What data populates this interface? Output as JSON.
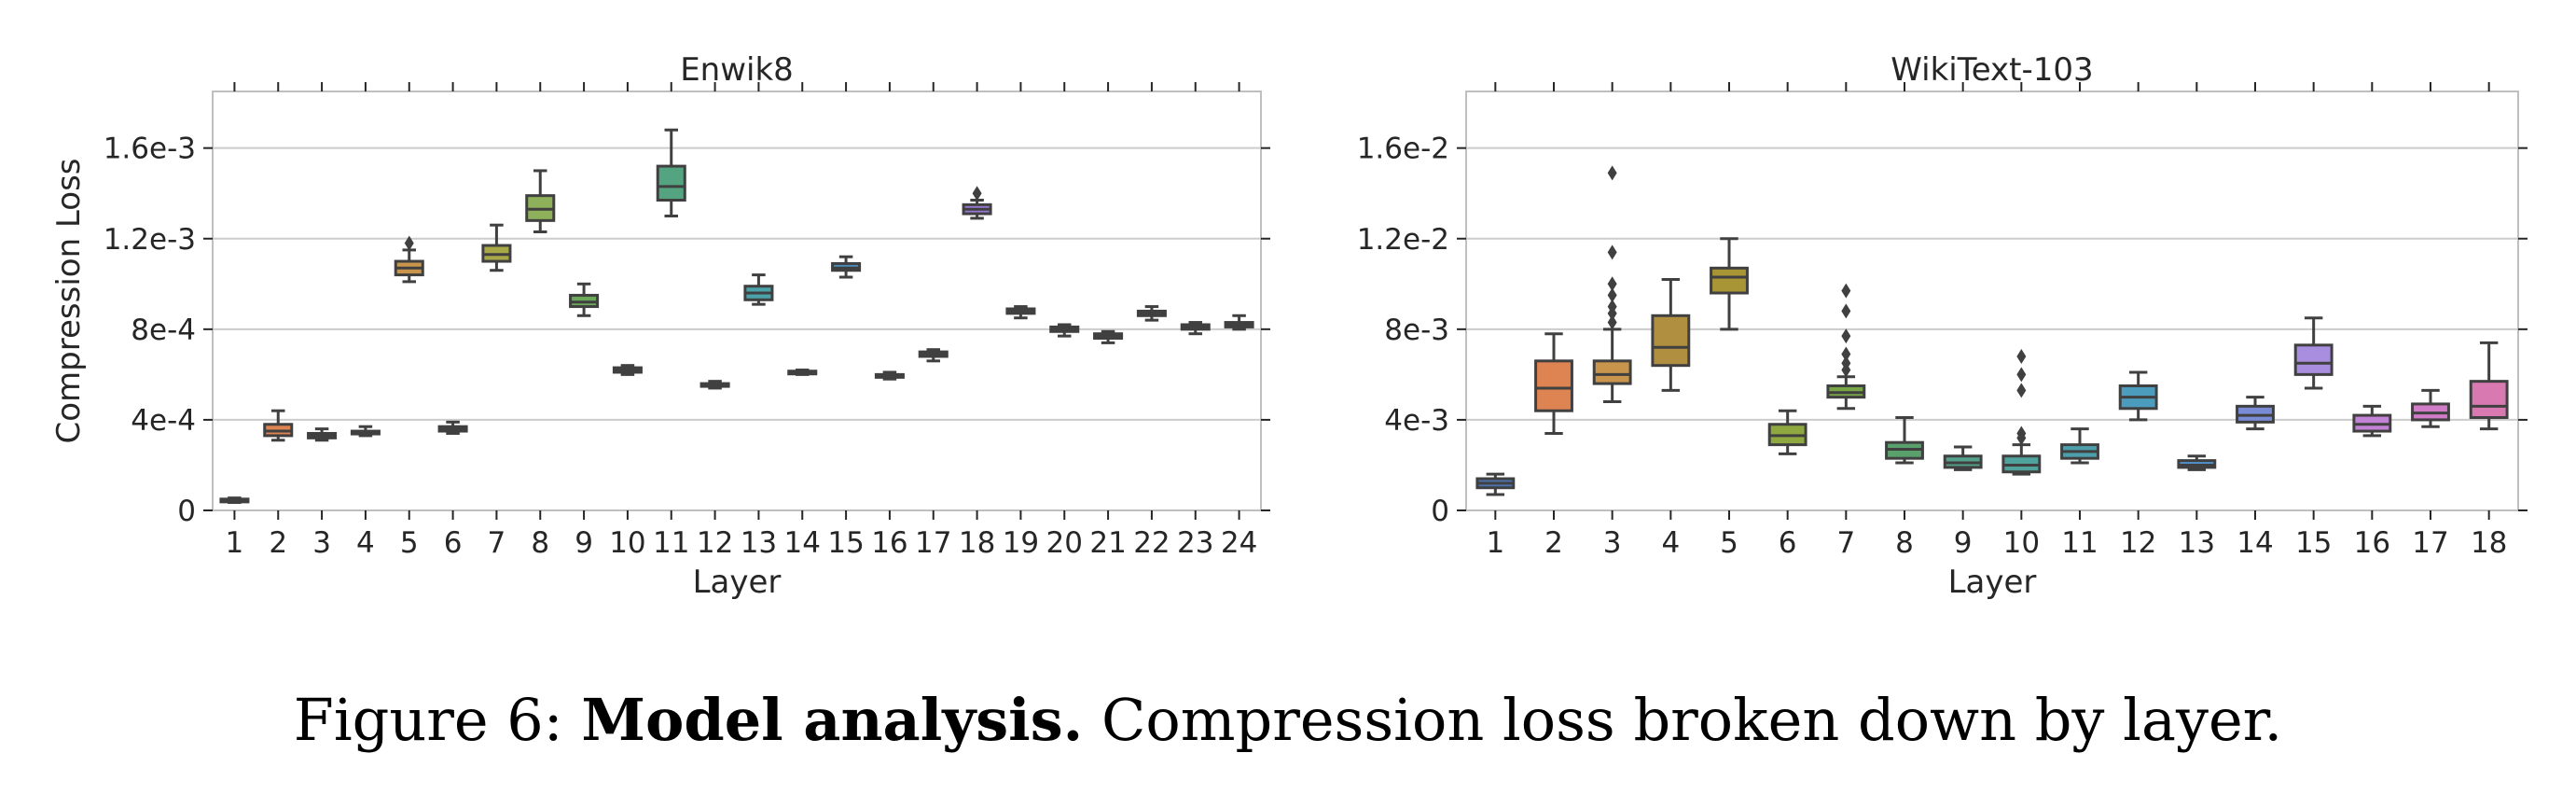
{
  "caption": {
    "prefix": "Figure 6:",
    "bold": "Model analysis.",
    "text": "Compression loss broken down by layer."
  },
  "chart_data": [
    {
      "type": "box",
      "title": "Enwik8",
      "xlabel": "Layer",
      "ylabel": "Compression Loss",
      "ylim": [
        0,
        0.00185
      ],
      "yticks": [
        0,
        0.0004,
        0.0008,
        0.0012,
        0.0016
      ],
      "ytick_labels": [
        "0",
        "4e-4",
        "8e-4",
        "1.2e-3",
        "1.6e-3"
      ],
      "grid": "horizontal",
      "categories": [
        "1",
        "2",
        "3",
        "4",
        "5",
        "6",
        "7",
        "8",
        "9",
        "10",
        "11",
        "12",
        "13",
        "14",
        "15",
        "16",
        "17",
        "18",
        "19",
        "20",
        "21",
        "22",
        "23",
        "24"
      ],
      "boxes": [
        {
          "whislo": 3.5e-05,
          "q1": 4e-05,
          "med": 4.5e-05,
          "q3": 5e-05,
          "whishi": 5.5e-05,
          "fliers": [],
          "color": "#4c72b0"
        },
        {
          "whislo": 0.00031,
          "q1": 0.00033,
          "med": 0.00035,
          "q3": 0.00038,
          "whishi": 0.00044,
          "fliers": [],
          "color": "#dd8452"
        },
        {
          "whislo": 0.00031,
          "q1": 0.00032,
          "med": 0.00033,
          "q3": 0.00034,
          "whishi": 0.00036,
          "fliers": [],
          "color": "#c44e52"
        },
        {
          "whislo": 0.00033,
          "q1": 0.00034,
          "med": 0.000345,
          "q3": 0.00035,
          "whishi": 0.00037,
          "fliers": [],
          "color": "#a88330"
        },
        {
          "whislo": 0.00101,
          "q1": 0.00104,
          "med": 0.00107,
          "q3": 0.0011,
          "whishi": 0.00115,
          "fliers": [
            0.00118
          ],
          "color": "#c9954c"
        },
        {
          "whislo": 0.00034,
          "q1": 0.00035,
          "med": 0.00036,
          "q3": 0.00037,
          "whishi": 0.00039,
          "fliers": [],
          "color": "#8d9a3a"
        },
        {
          "whislo": 0.00106,
          "q1": 0.0011,
          "med": 0.00113,
          "q3": 0.00117,
          "whishi": 0.00126,
          "fliers": [],
          "color": "#a8a848"
        },
        {
          "whislo": 0.00123,
          "q1": 0.00128,
          "med": 0.00133,
          "q3": 0.00139,
          "whishi": 0.0015,
          "fliers": [],
          "color": "#8fb05a"
        },
        {
          "whislo": 0.00086,
          "q1": 0.0009,
          "med": 0.00092,
          "q3": 0.00095,
          "whishi": 0.001,
          "fliers": [],
          "color": "#6ba85a"
        },
        {
          "whislo": 0.0006,
          "q1": 0.00061,
          "med": 0.00062,
          "q3": 0.00063,
          "whishi": 0.00064,
          "fliers": [],
          "color": "#5a9e6f"
        },
        {
          "whislo": 0.0013,
          "q1": 0.00137,
          "med": 0.00143,
          "q3": 0.00152,
          "whishi": 0.00168,
          "fliers": [],
          "color": "#55a481"
        },
        {
          "whislo": 0.00054,
          "q1": 0.00055,
          "med": 0.000555,
          "q3": 0.00056,
          "whishi": 0.00057,
          "fliers": [],
          "color": "#4fa895"
        },
        {
          "whislo": 0.00091,
          "q1": 0.00093,
          "med": 0.00096,
          "q3": 0.00099,
          "whishi": 0.00104,
          "fliers": [],
          "color": "#4aa3a8"
        },
        {
          "whislo": 0.0006,
          "q1": 0.000605,
          "med": 0.00061,
          "q3": 0.000615,
          "whishi": 0.00062,
          "fliers": [],
          "color": "#4899b2"
        },
        {
          "whislo": 0.00103,
          "q1": 0.00106,
          "med": 0.00107,
          "q3": 0.00109,
          "whishi": 0.00112,
          "fliers": [],
          "color": "#4a8ebd"
        },
        {
          "whislo": 0.00058,
          "q1": 0.00059,
          "med": 0.000595,
          "q3": 0.0006,
          "whishi": 0.00061,
          "fliers": [],
          "color": "#5b86c8"
        },
        {
          "whislo": 0.00066,
          "q1": 0.00068,
          "med": 0.00069,
          "q3": 0.0007,
          "whishi": 0.00071,
          "fliers": [],
          "color": "#7a7fcf"
        },
        {
          "whislo": 0.00129,
          "q1": 0.00131,
          "med": 0.00133,
          "q3": 0.00135,
          "whishi": 0.00137,
          "fliers": [
            0.0014
          ],
          "color": "#9778d0"
        },
        {
          "whislo": 0.00085,
          "q1": 0.00087,
          "med": 0.00088,
          "q3": 0.00089,
          "whishi": 0.0009,
          "fliers": [],
          "color": "#b06fcb"
        },
        {
          "whislo": 0.00077,
          "q1": 0.00079,
          "med": 0.0008,
          "q3": 0.00081,
          "whishi": 0.00082,
          "fliers": [],
          "color": "#c26cbf"
        },
        {
          "whislo": 0.00074,
          "q1": 0.00076,
          "med": 0.00077,
          "q3": 0.00078,
          "whishi": 0.00079,
          "fliers": [],
          "color": "#cb6aaf"
        },
        {
          "whislo": 0.00084,
          "q1": 0.00086,
          "med": 0.00087,
          "q3": 0.00088,
          "whishi": 0.0009,
          "fliers": [],
          "color": "#d46aa0"
        },
        {
          "whislo": 0.00078,
          "q1": 0.0008,
          "med": 0.00081,
          "q3": 0.00082,
          "whishi": 0.00083,
          "fliers": [],
          "color": "#d86b8f"
        },
        {
          "whislo": 0.0008,
          "q1": 0.00081,
          "med": 0.00082,
          "q3": 0.00083,
          "whishi": 0.00086,
          "fliers": [],
          "color": "#dc6e7e"
        }
      ]
    },
    {
      "type": "box",
      "title": "WikiText-103",
      "xlabel": "Layer",
      "ylabel": "",
      "ylim": [
        0,
        0.0185
      ],
      "yticks": [
        0,
        0.004,
        0.008,
        0.012,
        0.016
      ],
      "ytick_labels": [
        "0",
        "4e-3",
        "8e-3",
        "1.2e-2",
        "1.6e-2"
      ],
      "grid": "horizontal",
      "categories": [
        "1",
        "2",
        "3",
        "4",
        "5",
        "6",
        "7",
        "8",
        "9",
        "10",
        "11",
        "12",
        "13",
        "14",
        "15",
        "16",
        "17",
        "18"
      ],
      "boxes": [
        {
          "whislo": 0.0007,
          "q1": 0.001,
          "med": 0.0012,
          "q3": 0.0014,
          "whishi": 0.0016,
          "fliers": [],
          "color": "#4c72b0"
        },
        {
          "whislo": 0.0034,
          "q1": 0.0044,
          "med": 0.0054,
          "q3": 0.0066,
          "whishi": 0.0078,
          "fliers": [],
          "color": "#dd8452"
        },
        {
          "whislo": 0.0048,
          "q1": 0.0056,
          "med": 0.006,
          "q3": 0.0066,
          "whishi": 0.008,
          "fliers": [
            0.0083,
            0.0087,
            0.009,
            0.0095,
            0.01,
            0.0114,
            0.0149
          ],
          "color": "#c9954c"
        },
        {
          "whislo": 0.0053,
          "q1": 0.0064,
          "med": 0.0072,
          "q3": 0.0086,
          "whishi": 0.0102,
          "fliers": [],
          "color": "#b08f40"
        },
        {
          "whislo": 0.008,
          "q1": 0.0096,
          "med": 0.0103,
          "q3": 0.0107,
          "whishi": 0.012,
          "fliers": [],
          "color": "#a89536"
        },
        {
          "whislo": 0.0025,
          "q1": 0.0029,
          "med": 0.0033,
          "q3": 0.0038,
          "whishi": 0.0044,
          "fliers": [],
          "color": "#8fa83f"
        },
        {
          "whislo": 0.0045,
          "q1": 0.005,
          "med": 0.0052,
          "q3": 0.0055,
          "whishi": 0.0059,
          "fliers": [
            0.0062,
            0.0065,
            0.0069,
            0.0077,
            0.0088,
            0.0097
          ],
          "color": "#78a545"
        },
        {
          "whislo": 0.0021,
          "q1": 0.0023,
          "med": 0.0027,
          "q3": 0.003,
          "whishi": 0.0041,
          "fliers": [],
          "color": "#5aa06c"
        },
        {
          "whislo": 0.0018,
          "q1": 0.0019,
          "med": 0.0021,
          "q3": 0.0024,
          "whishi": 0.0028,
          "fliers": [],
          "color": "#54a18b"
        },
        {
          "whislo": 0.0016,
          "q1": 0.0017,
          "med": 0.002,
          "q3": 0.0024,
          "whishi": 0.0029,
          "fliers": [
            0.0032,
            0.0034,
            0.0053,
            0.006,
            0.0068
          ],
          "color": "#50a29d"
        },
        {
          "whislo": 0.0021,
          "q1": 0.0023,
          "med": 0.0026,
          "q3": 0.0029,
          "whishi": 0.0036,
          "fliers": [],
          "color": "#4e9fac"
        },
        {
          "whislo": 0.004,
          "q1": 0.0045,
          "med": 0.005,
          "q3": 0.0055,
          "whishi": 0.0061,
          "fliers": [],
          "color": "#4b9cbd"
        },
        {
          "whislo": 0.0018,
          "q1": 0.0019,
          "med": 0.002,
          "q3": 0.0022,
          "whishi": 0.0024,
          "fliers": [],
          "color": "#5190cb"
        },
        {
          "whislo": 0.0036,
          "q1": 0.0039,
          "med": 0.0042,
          "q3": 0.0046,
          "whishi": 0.005,
          "fliers": [],
          "color": "#7a8cd6"
        },
        {
          "whislo": 0.0054,
          "q1": 0.006,
          "med": 0.0065,
          "q3": 0.0073,
          "whishi": 0.0085,
          "fliers": [],
          "color": "#a98ee0"
        },
        {
          "whislo": 0.0033,
          "q1": 0.0035,
          "med": 0.0038,
          "q3": 0.0042,
          "whishi": 0.0046,
          "fliers": [],
          "color": "#c282d5"
        },
        {
          "whislo": 0.0037,
          "q1": 0.004,
          "med": 0.0043,
          "q3": 0.0047,
          "whishi": 0.0053,
          "fliers": [],
          "color": "#d07cc6"
        },
        {
          "whislo": 0.0036,
          "q1": 0.0041,
          "med": 0.0046,
          "q3": 0.0057,
          "whishi": 0.0074,
          "fliers": [],
          "color": "#d979b2"
        }
      ]
    }
  ]
}
